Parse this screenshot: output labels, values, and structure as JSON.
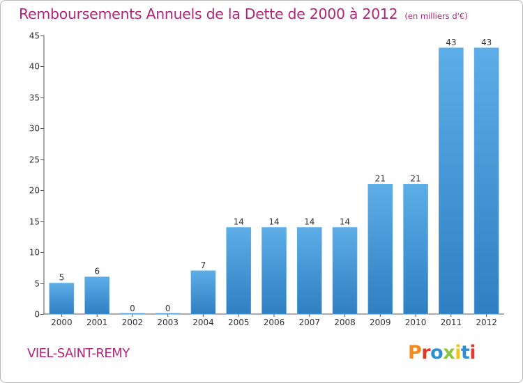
{
  "header": {
    "title": "Remboursements Annuels de la Dette de 2000 à 2012",
    "subtitle": "(en milliers d'€)"
  },
  "footer": {
    "commune": "VIEL-SAINT-REMY",
    "brand": "Proxiti",
    "brand_colors": [
      "#f28a1d",
      "#e03c2e",
      "#2e8fd6",
      "#8cc63f",
      "#f2c21d",
      "#2e8fd6",
      "#e03c2e"
    ]
  },
  "colors": {
    "bar_light": "#5dade8",
    "bar_dark": "#2f7fc2",
    "accent": "#b0267a"
  },
  "chart_data": {
    "type": "bar",
    "categories": [
      "2000",
      "2001",
      "2002",
      "2003",
      "2004",
      "2005",
      "2006",
      "2007",
      "2008",
      "2009",
      "2010",
      "2011",
      "2012"
    ],
    "values": [
      5,
      6,
      0,
      0,
      7,
      14,
      14,
      14,
      14,
      21,
      21,
      43,
      43
    ],
    "data_labels": [
      "5",
      "6",
      "0",
      "0",
      "7",
      "14",
      "14",
      "14",
      "14",
      "21",
      "21",
      "43",
      "43"
    ],
    "title": "Remboursements Annuels de la Dette de 2000 à 2012",
    "subtitle": "(en milliers d'€)",
    "xlabel": "",
    "ylabel": "",
    "ylim": [
      0,
      45
    ],
    "yticks": [
      0,
      5,
      10,
      15,
      20,
      25,
      30,
      35,
      40,
      45
    ],
    "grid": false,
    "legend": "none"
  }
}
